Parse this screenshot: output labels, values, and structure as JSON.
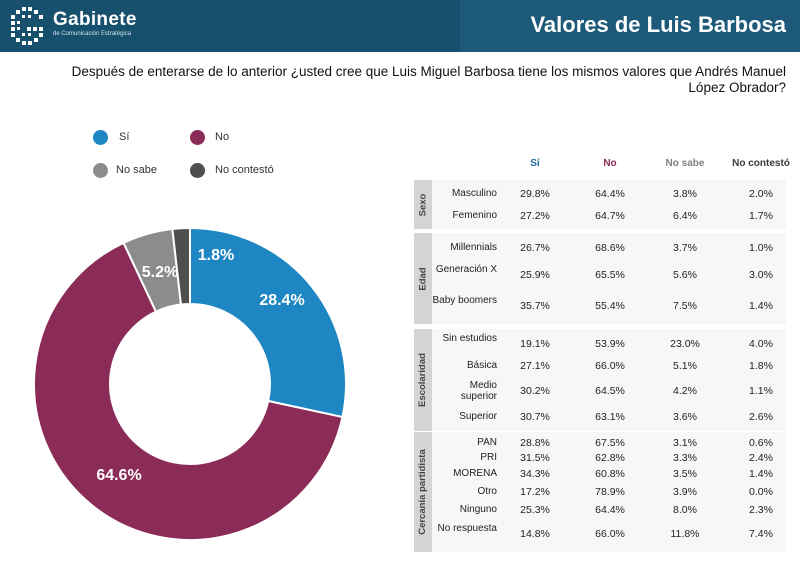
{
  "header": {
    "brand": "Gabinete",
    "brand_sub": "de Comunicación Estratégica",
    "title": "Valores de Luis Barbosa"
  },
  "question": "Después de enterarse de lo anterior ¿usted cree que Luis Miguel Barbosa tiene los mismos valores que Andrés Manuel López Obrador?",
  "legend": [
    {
      "label": "Sí",
      "color": "#1f86c4"
    },
    {
      "label": "No",
      "color": "#8b2b57"
    },
    {
      "label": "No sabe",
      "color": "#8c8c8c"
    },
    {
      "label": "No contestó",
      "color": "#4f4f4f"
    }
  ],
  "chart_data": {
    "type": "pie",
    "donut": true,
    "slices": [
      {
        "label": "Sí",
        "value": 28.4,
        "display": "28.4%",
        "color": "#1f86c4"
      },
      {
        "label": "No",
        "value": 64.6,
        "display": "64.6%",
        "color": "#8b2b57"
      },
      {
        "label": "No sabe",
        "value": 5.2,
        "display": "5.2%",
        "color": "#8c8c8c"
      },
      {
        "label": "No contestó",
        "value": 1.8,
        "display": "1.8%",
        "color": "#4f4f4f"
      }
    ]
  },
  "table": {
    "headers": [
      {
        "label": "Sí",
        "color": "#1f6a98"
      },
      {
        "label": "No",
        "color": "#8b2b57"
      },
      {
        "label": "No sabe",
        "color": "#808080"
      },
      {
        "label": "No contestó",
        "color": "#3a3a3a"
      }
    ],
    "groups": [
      {
        "name": "Sexo",
        "rows": [
          {
            "label": "Masculino",
            "values": [
              "29.8%",
              "64.4%",
              "3.8%",
              "2.0%"
            ]
          },
          {
            "label": "Femenino",
            "values": [
              "27.2%",
              "64.7%",
              "6.4%",
              "1.7%"
            ]
          }
        ]
      },
      {
        "name": "Edad",
        "rows": [
          {
            "label": "Millennials",
            "values": [
              "26.7%",
              "68.6%",
              "3.7%",
              "1.0%"
            ]
          },
          {
            "label": "Generación X",
            "values": [
              "25.9%",
              "65.5%",
              "5.6%",
              "3.0%"
            ]
          },
          {
            "label": "Baby boomers",
            "values": [
              "35.7%",
              "55.4%",
              "7.5%",
              "1.4%"
            ]
          }
        ]
      },
      {
        "name": "Escolaridad",
        "rows": [
          {
            "label": "Sin estudios",
            "values": [
              "19.1%",
              "53.9%",
              "23.0%",
              "4.0%"
            ]
          },
          {
            "label": "Básica",
            "values": [
              "27.1%",
              "66.0%",
              "5.1%",
              "1.8%"
            ]
          },
          {
            "label": "Medio superior",
            "values": [
              "30.2%",
              "64.5%",
              "4.2%",
              "1.1%"
            ]
          },
          {
            "label": "Superior",
            "values": [
              "30.7%",
              "63.1%",
              "3.6%",
              "2.6%"
            ]
          }
        ]
      },
      {
        "name": "Cercanía partidista",
        "rows": [
          {
            "label": "PAN",
            "values": [
              "28.8%",
              "67.5%",
              "3.1%",
              "0.6%"
            ]
          },
          {
            "label": "PRI",
            "values": [
              "31.5%",
              "62.8%",
              "3.3%",
              "2.4%"
            ]
          },
          {
            "label": "MORENA",
            "values": [
              "34.3%",
              "60.8%",
              "3.5%",
              "1.4%"
            ]
          },
          {
            "label": "Otro",
            "values": [
              "17.2%",
              "78.9%",
              "3.9%",
              "0.0%"
            ]
          },
          {
            "label": "Ninguno",
            "values": [
              "25.3%",
              "64.4%",
              "8.0%",
              "2.3%"
            ]
          },
          {
            "label": "No respuesta",
            "values": [
              "14.8%",
              "66.0%",
              "11.8%",
              "7.4%"
            ]
          }
        ]
      }
    ]
  }
}
